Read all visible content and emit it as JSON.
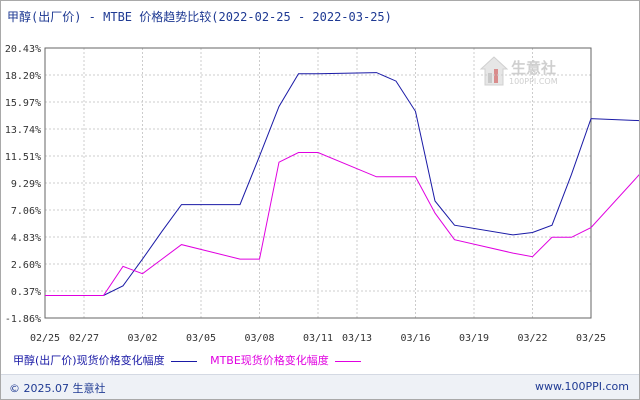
{
  "header": {
    "title": "甲醇(出厂价) - MTBE 价格趋势比较(2022-02-25 - 2022-03-25)"
  },
  "watermark": {
    "text": "生意社",
    "url": "100PPI.COM"
  },
  "footer": {
    "copyright": "© 2025.07 生意社",
    "site": "www.100PPI.com"
  },
  "colors": {
    "series1": "#1a1aa6",
    "series2": "#e000e0",
    "grid": "#cccccc",
    "axis": "#666666"
  },
  "chart_data": {
    "type": "line",
    "title": "甲醇(出厂价) - MTBE 价格趋势比较(2022-02-25 - 2022-03-25)",
    "xlabel": "",
    "ylabel": "",
    "x_ticks": [
      "02/25",
      "02/27",
      "03/02",
      "03/05",
      "03/08",
      "03/11",
      "03/13",
      "03/16",
      "03/19",
      "03/22",
      "03/25"
    ],
    "y_ticks": [
      "20.43%",
      "18.20%",
      "15.97%",
      "13.74%",
      "11.51%",
      "9.29%",
      "7.06%",
      "4.83%",
      "2.60%",
      "0.37%",
      "-1.86%"
    ],
    "ylim": [
      -1.86,
      20.43
    ],
    "grid": true,
    "legend_position": "bottom",
    "series": [
      {
        "name": "甲醇(出厂价)现货价格变化幅度",
        "points": [
          [
            "02-25",
            0.0
          ],
          [
            "02-28",
            0.0
          ],
          [
            "03-01",
            0.8
          ],
          [
            "03-02",
            3.0
          ],
          [
            "03-03",
            5.3
          ],
          [
            "03-04",
            7.5
          ],
          [
            "03-07",
            7.5
          ],
          [
            "03-08",
            11.5
          ],
          [
            "03-09",
            15.6
          ],
          [
            "03-10",
            18.3
          ],
          [
            "03-11",
            18.3
          ],
          [
            "03-14",
            18.4
          ],
          [
            "03-15",
            17.7
          ],
          [
            "03-16",
            15.2
          ],
          [
            "03-17",
            7.8
          ],
          [
            "03-18",
            5.8
          ],
          [
            "03-21",
            5.0
          ],
          [
            "03-22",
            5.2
          ],
          [
            "03-23",
            5.8
          ],
          [
            "03-24",
            10.0
          ],
          [
            "03-25",
            14.6
          ],
          [
            "03-28",
            14.4
          ],
          [
            "03-29",
            13.8
          ]
        ]
      },
      {
        "name": "MTBE现货价格变化幅度",
        "points": [
          [
            "02-25",
            0.0
          ],
          [
            "02-28",
            0.0
          ],
          [
            "03-01",
            2.4
          ],
          [
            "03-02",
            1.8
          ],
          [
            "03-03",
            3.0
          ],
          [
            "03-04",
            4.2
          ],
          [
            "03-07",
            3.0
          ],
          [
            "03-08",
            3.0
          ],
          [
            "03-09",
            11.0
          ],
          [
            "03-10",
            11.8
          ],
          [
            "03-11",
            11.8
          ],
          [
            "03-14",
            9.8
          ],
          [
            "03-15",
            9.8
          ],
          [
            "03-16",
            9.8
          ],
          [
            "03-17",
            6.8
          ],
          [
            "03-18",
            4.6
          ],
          [
            "03-21",
            3.5
          ],
          [
            "03-22",
            3.2
          ],
          [
            "03-23",
            4.8
          ],
          [
            "03-24",
            4.8
          ],
          [
            "03-25",
            5.6
          ],
          [
            "03-28",
            10.9
          ],
          [
            "03-29",
            10.9
          ],
          [
            "03-30",
            9.7
          ]
        ]
      }
    ]
  }
}
